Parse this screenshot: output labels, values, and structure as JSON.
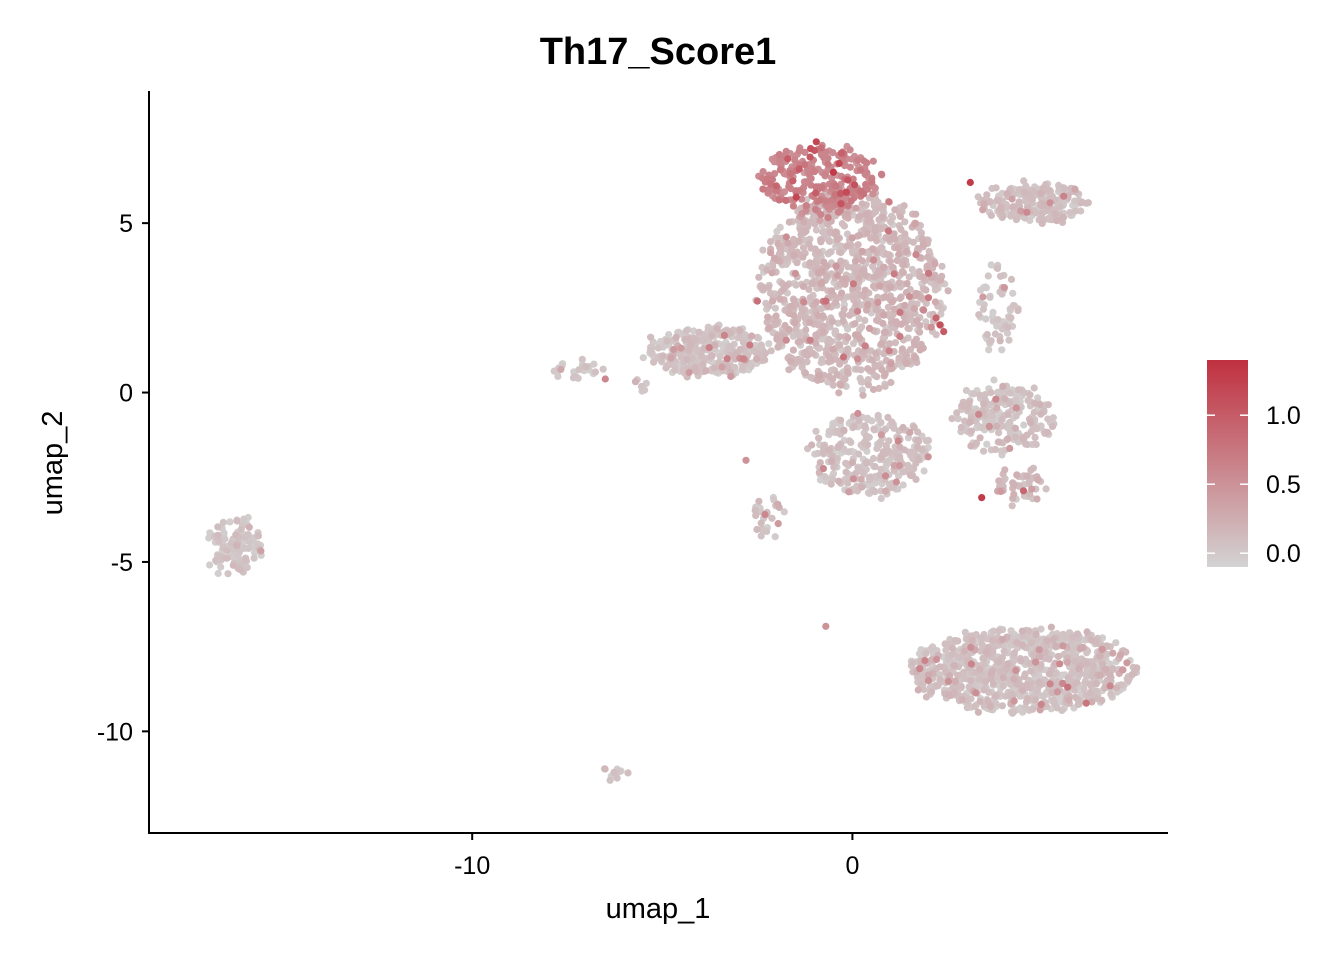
{
  "chart_data": {
    "type": "scatter",
    "title": "Th17_Score1",
    "xlabel": "umap_1",
    "ylabel": "umap_2",
    "xlim": [
      -18.5,
      8.3
    ],
    "ylim": [
      -13,
      8.9
    ],
    "x_ticks": [
      {
        "value": -10,
        "label": "-10"
      },
      {
        "value": 0,
        "label": "0"
      }
    ],
    "y_ticks": [
      {
        "value": 5,
        "label": "5"
      },
      {
        "value": 0,
        "label": "0"
      },
      {
        "value": -5,
        "label": "-5"
      },
      {
        "value": -10,
        "label": "-10"
      }
    ],
    "color_scale": {
      "low_color": "#d3d3d3",
      "high_color": "#c0303f",
      "min": -0.1,
      "max": 1.4,
      "ticks": [
        {
          "value": 0.0,
          "label": "0.0"
        },
        {
          "value": 0.5,
          "label": "0.5"
        },
        {
          "value": 1.0,
          "label": "1.0"
        }
      ]
    },
    "clusters": [
      {
        "cx": -16.2,
        "cy": -4.5,
        "rx": 0.7,
        "ry": 0.8,
        "n": 120,
        "score": 0.0
      },
      {
        "cx": -6.2,
        "cy": -11.3,
        "rx": 0.3,
        "ry": 0.25,
        "n": 12,
        "score": 0.0
      },
      {
        "cx": -7.3,
        "cy": 0.7,
        "rx": 0.6,
        "ry": 0.15,
        "n": 25,
        "score": 0.0
      },
      {
        "cx": -5.5,
        "cy": 0.2,
        "rx": 0.2,
        "ry": 0.15,
        "n": 6,
        "score": 0.05
      },
      {
        "cx": -3.8,
        "cy": 1.2,
        "rx": 1.6,
        "ry": 0.7,
        "n": 320,
        "score": 0.02
      },
      {
        "cx": 0.0,
        "cy": 3.0,
        "rx": 2.4,
        "ry": 3.0,
        "n": 1100,
        "score": 0.12
      },
      {
        "cx": -0.9,
        "cy": 6.3,
        "rx": 1.6,
        "ry": 1.0,
        "n": 260,
        "score": 0.6
      },
      {
        "cx": 0.5,
        "cy": -1.8,
        "rx": 1.6,
        "ry": 1.2,
        "n": 300,
        "score": 0.03
      },
      {
        "cx": 4.0,
        "cy": -0.8,
        "rx": 1.3,
        "ry": 1.0,
        "n": 220,
        "score": 0.04
      },
      {
        "cx": 4.4,
        "cy": -2.7,
        "rx": 0.6,
        "ry": 0.5,
        "n": 50,
        "score": 0.1
      },
      {
        "cx": 4.8,
        "cy": 5.6,
        "rx": 1.4,
        "ry": 0.55,
        "n": 220,
        "score": 0.05
      },
      {
        "cx": 3.8,
        "cy": 2.5,
        "rx": 0.5,
        "ry": 1.2,
        "n": 60,
        "score": 0.02
      },
      {
        "cx": 4.5,
        "cy": -8.2,
        "rx": 3.0,
        "ry": 1.2,
        "n": 900,
        "score": 0.04
      },
      {
        "cx": -2.2,
        "cy": -3.7,
        "rx": 0.4,
        "ry": 0.5,
        "n": 25,
        "score": 0.03
      }
    ],
    "high_points": [
      {
        "x": -0.95,
        "y": 7.4,
        "v": 1.2
      },
      {
        "x": -1.1,
        "y": 7.2,
        "v": 1.1
      },
      {
        "x": -1.7,
        "y": 6.9,
        "v": 1.0
      },
      {
        "x": -0.5,
        "y": 6.5,
        "v": 1.3
      },
      {
        "x": -1.4,
        "y": 6.6,
        "v": 1.0
      },
      {
        "x": -2.0,
        "y": 6.1,
        "v": 0.9
      },
      {
        "x": -0.2,
        "y": 6.3,
        "v": 0.8
      },
      {
        "x": 3.1,
        "y": 6.2,
        "v": 1.3
      },
      {
        "x": 2.3,
        "y": 2.0,
        "v": 1.1
      },
      {
        "x": 2.4,
        "y": 1.8,
        "v": 1.0
      },
      {
        "x": 2.2,
        "y": 2.2,
        "v": 0.9
      },
      {
        "x": 3.4,
        "y": -3.1,
        "v": 1.3
      },
      {
        "x": 4.5,
        "y": -2.9,
        "v": 0.9
      },
      {
        "x": -2.5,
        "y": 2.7,
        "v": 0.8
      },
      {
        "x": -2.7,
        "y": 1.4,
        "v": 0.7
      },
      {
        "x": -0.7,
        "y": 2.7,
        "v": 0.8
      },
      {
        "x": 1.1,
        "y": 3.5,
        "v": 0.7
      },
      {
        "x": 2.0,
        "y": 2.8,
        "v": 0.7
      },
      {
        "x": -2.3,
        "y": -3.6,
        "v": 0.6
      },
      {
        "x": -6.5,
        "y": 0.4,
        "v": 0.6
      },
      {
        "x": -2.8,
        "y": -2.0,
        "v": 0.5
      },
      {
        "x": 3.6,
        "y": -1.0,
        "v": 0.5
      },
      {
        "x": 5.2,
        "y": 5.6,
        "v": 0.5
      },
      {
        "x": 4.3,
        "y": -8.2,
        "v": 0.5
      },
      {
        "x": 5.2,
        "y": -8.6,
        "v": 0.6
      },
      {
        "x": 2.0,
        "y": -8.5,
        "v": 0.5
      },
      {
        "x": -0.7,
        "y": -6.9,
        "v": 0.5
      }
    ]
  }
}
